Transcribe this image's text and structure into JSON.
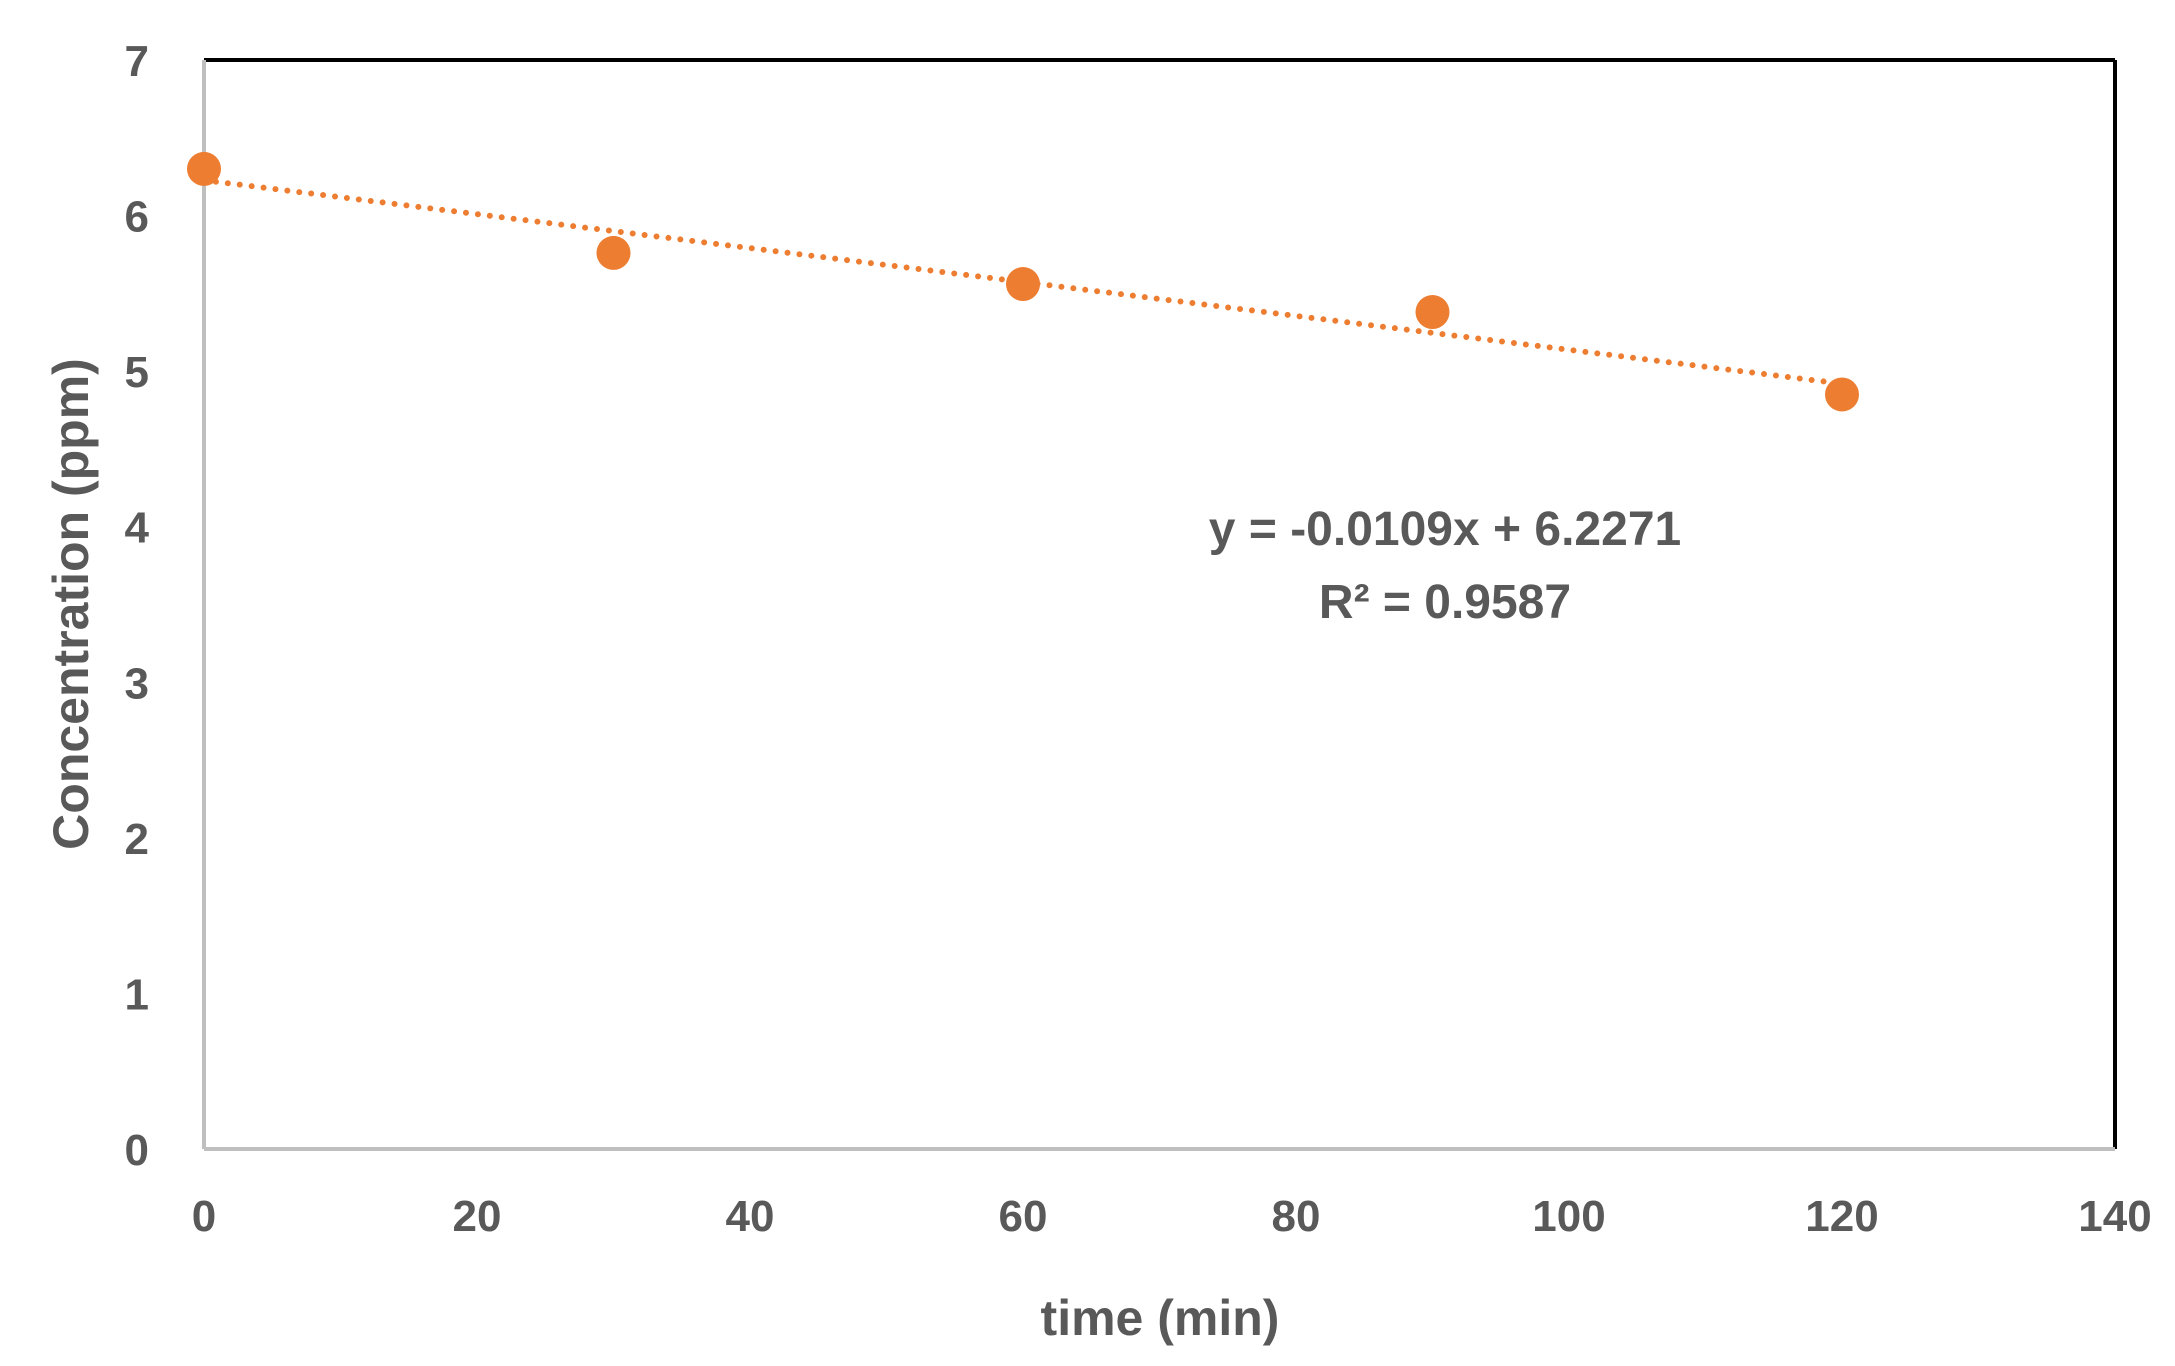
{
  "chart_data": {
    "type": "scatter",
    "title": "",
    "xlabel": "time (min)",
    "ylabel": "Concentration (ppm)",
    "xlim": [
      0,
      140
    ],
    "ylim": [
      0,
      7
    ],
    "x_ticks": [
      0,
      20,
      40,
      60,
      80,
      100,
      120,
      140
    ],
    "y_ticks": [
      0,
      1,
      2,
      3,
      4,
      5,
      6,
      7
    ],
    "x_tick_labels": [
      "0",
      "20",
      "40",
      "60",
      "80",
      "100",
      "120",
      "140"
    ],
    "y_tick_labels": [
      "0",
      "1",
      "2",
      "3",
      "4",
      "5",
      "6",
      "7"
    ],
    "grid": false,
    "legend": "none",
    "series": [
      {
        "x": [
          0,
          30,
          60,
          90,
          120
        ],
        "y": [
          6.3,
          5.76,
          5.56,
          5.38,
          4.85
        ],
        "color": "#ED7D31"
      }
    ],
    "trendline": {
      "type": "linear",
      "slope": -0.0109,
      "intercept": 6.2271,
      "style": "dotted",
      "color": "#ED7D31"
    },
    "annotations": {
      "equation": "y = -0.0109x + 6.2271",
      "r_squared": "R² = 0.9587"
    }
  }
}
